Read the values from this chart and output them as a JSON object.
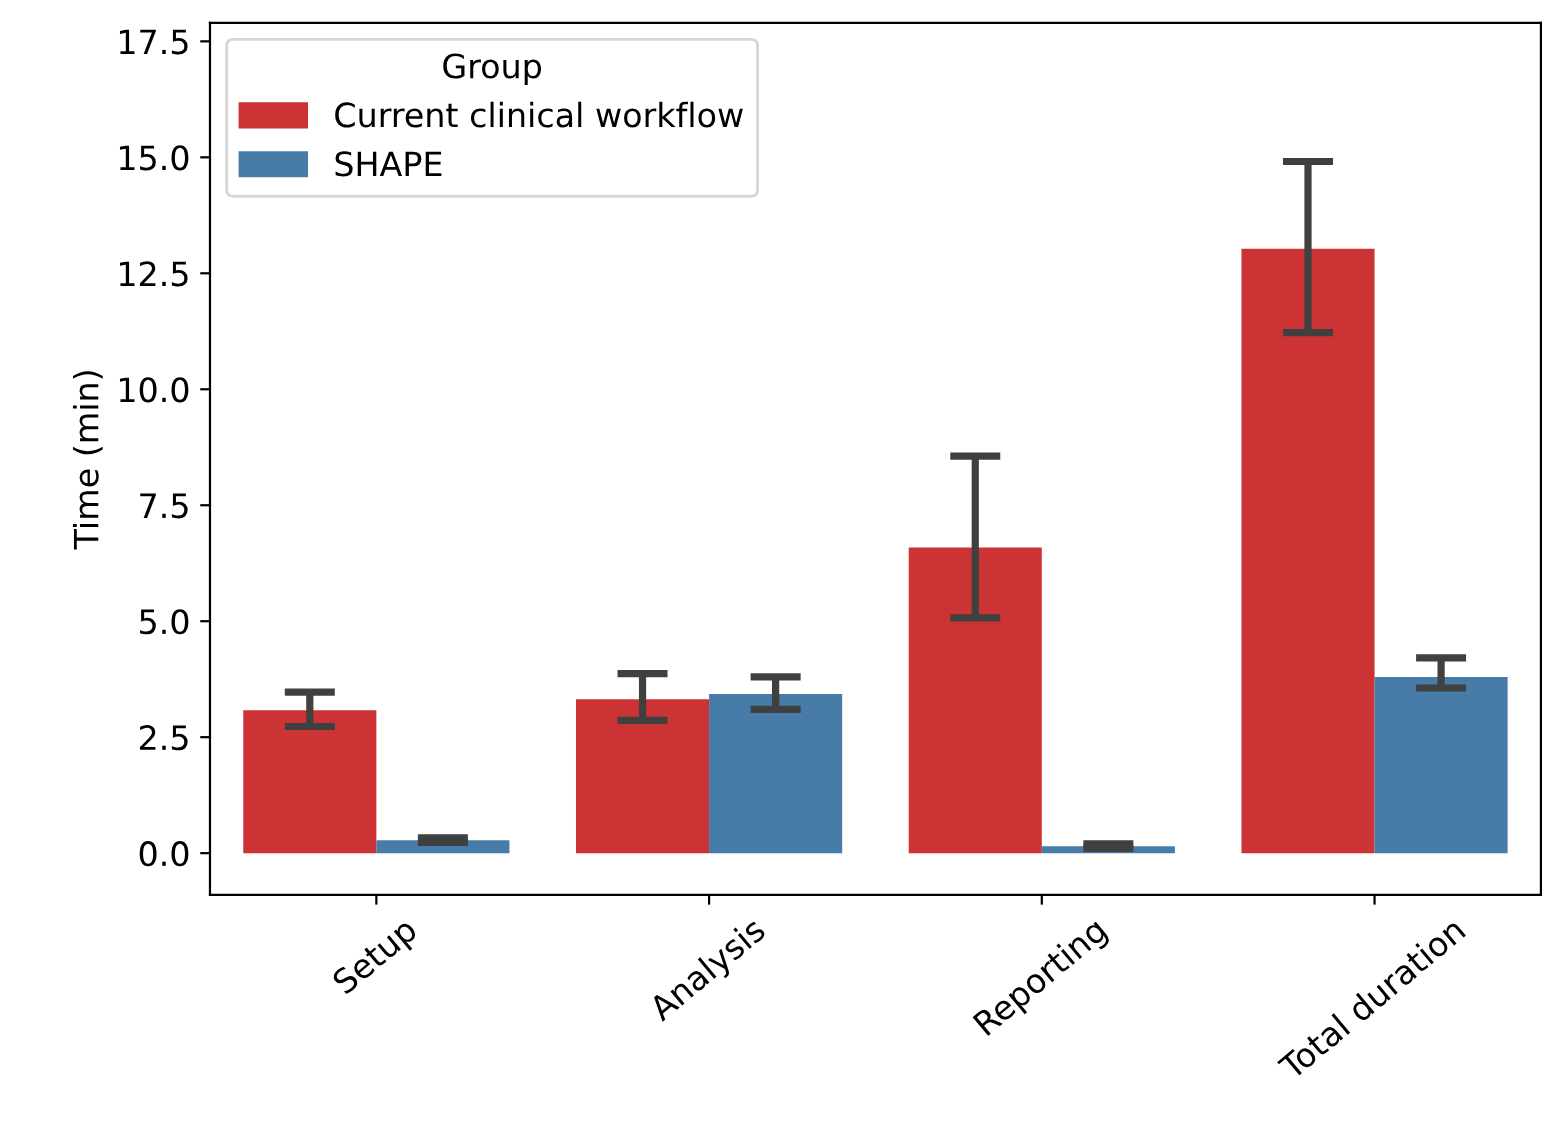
{
  "chart_data": {
    "type": "bar",
    "ylabel": "Time (min)",
    "legend_title": "Group",
    "legend": "top left",
    "categories": [
      "Setup",
      "Analysis",
      "Reporting",
      "Total duration"
    ],
    "series": [
      {
        "name": "Current clinical workflow",
        "color": "#cb3335",
        "values": [
          3.08,
          3.32,
          6.59,
          13.03
        ],
        "errors": [
          [
            2.73,
            3.47
          ],
          [
            2.86,
            3.87
          ],
          [
            5.07,
            8.56
          ],
          [
            11.22,
            14.91
          ]
        ]
      },
      {
        "name": "SHAPE",
        "color": "#477ca8",
        "values": [
          0.28,
          3.43,
          0.15,
          3.8
        ],
        "errors": [
          [
            0.23,
            0.33
          ],
          [
            3.1,
            3.8
          ],
          [
            0.1,
            0.2
          ],
          [
            3.56,
            4.21
          ]
        ]
      }
    ],
    "ylim": [
      -0.9,
      17.9
    ],
    "yticks": [
      {
        "value": 0,
        "label": "0.0"
      },
      2.5,
      {
        "value": 5,
        "label": "5.0"
      },
      7.5,
      {
        "value": 10,
        "label": "10.0"
      },
      12.5,
      {
        "value": 15,
        "label": "15.0"
      },
      17.5
    ],
    "grid": false
  }
}
